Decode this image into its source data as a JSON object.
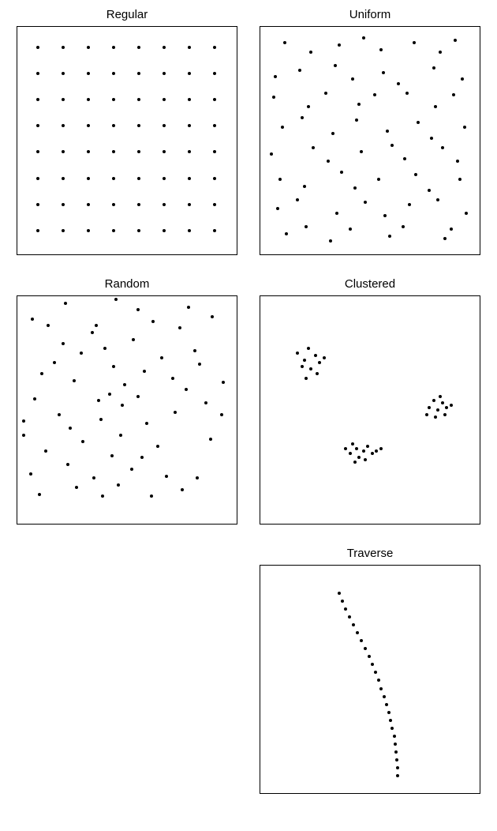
{
  "layout": {
    "rows": 3,
    "cols": 2,
    "panel_box_w": 280,
    "panel_box_h": 290,
    "background_color": "#ffffff",
    "border_color": "#000000",
    "border_width": 1.5,
    "title_fontsize": 15,
    "title_color": "#000000",
    "dot_color": "#000000",
    "dot_radius": 2.0
  },
  "panels": [
    {
      "key": "regular",
      "title": "Regular",
      "type": "scatter",
      "points": [
        [
          0.095,
          0.09
        ],
        [
          0.21,
          0.09
        ],
        [
          0.325,
          0.09
        ],
        [
          0.44,
          0.09
        ],
        [
          0.555,
          0.09
        ],
        [
          0.67,
          0.09
        ],
        [
          0.785,
          0.09
        ],
        [
          0.9,
          0.09
        ],
        [
          0.095,
          0.205
        ],
        [
          0.21,
          0.205
        ],
        [
          0.325,
          0.205
        ],
        [
          0.44,
          0.205
        ],
        [
          0.555,
          0.205
        ],
        [
          0.67,
          0.205
        ],
        [
          0.785,
          0.205
        ],
        [
          0.9,
          0.205
        ],
        [
          0.095,
          0.32
        ],
        [
          0.21,
          0.32
        ],
        [
          0.325,
          0.32
        ],
        [
          0.44,
          0.32
        ],
        [
          0.555,
          0.32
        ],
        [
          0.67,
          0.32
        ],
        [
          0.785,
          0.32
        ],
        [
          0.9,
          0.32
        ],
        [
          0.095,
          0.435
        ],
        [
          0.21,
          0.435
        ],
        [
          0.325,
          0.435
        ],
        [
          0.44,
          0.435
        ],
        [
          0.555,
          0.435
        ],
        [
          0.67,
          0.435
        ],
        [
          0.785,
          0.435
        ],
        [
          0.9,
          0.435
        ],
        [
          0.095,
          0.55
        ],
        [
          0.21,
          0.55
        ],
        [
          0.325,
          0.55
        ],
        [
          0.44,
          0.55
        ],
        [
          0.555,
          0.55
        ],
        [
          0.67,
          0.55
        ],
        [
          0.785,
          0.55
        ],
        [
          0.9,
          0.55
        ],
        [
          0.095,
          0.665
        ],
        [
          0.21,
          0.665
        ],
        [
          0.325,
          0.665
        ],
        [
          0.44,
          0.665
        ],
        [
          0.555,
          0.665
        ],
        [
          0.67,
          0.665
        ],
        [
          0.785,
          0.665
        ],
        [
          0.9,
          0.665
        ],
        [
          0.095,
          0.78
        ],
        [
          0.21,
          0.78
        ],
        [
          0.325,
          0.78
        ],
        [
          0.44,
          0.78
        ],
        [
          0.555,
          0.78
        ],
        [
          0.67,
          0.78
        ],
        [
          0.785,
          0.78
        ],
        [
          0.9,
          0.78
        ],
        [
          0.095,
          0.895
        ],
        [
          0.21,
          0.895
        ],
        [
          0.325,
          0.895
        ],
        [
          0.44,
          0.895
        ],
        [
          0.555,
          0.895
        ],
        [
          0.67,
          0.895
        ],
        [
          0.785,
          0.895
        ],
        [
          0.9,
          0.895
        ]
      ]
    },
    {
      "key": "uniform",
      "title": "Uniform",
      "type": "scatter",
      "points": [
        [
          0.11,
          0.07
        ],
        [
          0.23,
          0.11
        ],
        [
          0.36,
          0.08
        ],
        [
          0.47,
          0.05
        ],
        [
          0.55,
          0.1
        ],
        [
          0.7,
          0.07
        ],
        [
          0.82,
          0.11
        ],
        [
          0.89,
          0.06
        ],
        [
          0.07,
          0.22
        ],
        [
          0.18,
          0.19
        ],
        [
          0.34,
          0.17
        ],
        [
          0.42,
          0.23
        ],
        [
          0.56,
          0.2
        ],
        [
          0.63,
          0.25
        ],
        [
          0.79,
          0.18
        ],
        [
          0.92,
          0.23
        ],
        [
          0.06,
          0.31
        ],
        [
          0.22,
          0.35
        ],
        [
          0.3,
          0.29
        ],
        [
          0.45,
          0.34
        ],
        [
          0.52,
          0.3
        ],
        [
          0.67,
          0.29
        ],
        [
          0.8,
          0.35
        ],
        [
          0.88,
          0.3
        ],
        [
          0.1,
          0.44
        ],
        [
          0.19,
          0.4
        ],
        [
          0.33,
          0.47
        ],
        [
          0.44,
          0.41
        ],
        [
          0.58,
          0.46
        ],
        [
          0.72,
          0.42
        ],
        [
          0.78,
          0.49
        ],
        [
          0.93,
          0.44
        ],
        [
          0.05,
          0.56
        ],
        [
          0.24,
          0.53
        ],
        [
          0.31,
          0.59
        ],
        [
          0.46,
          0.55
        ],
        [
          0.6,
          0.52
        ],
        [
          0.66,
          0.58
        ],
        [
          0.83,
          0.53
        ],
        [
          0.9,
          0.59
        ],
        [
          0.09,
          0.67
        ],
        [
          0.2,
          0.7
        ],
        [
          0.37,
          0.64
        ],
        [
          0.43,
          0.71
        ],
        [
          0.54,
          0.67
        ],
        [
          0.71,
          0.65
        ],
        [
          0.77,
          0.72
        ],
        [
          0.91,
          0.67
        ],
        [
          0.08,
          0.8
        ],
        [
          0.17,
          0.76
        ],
        [
          0.35,
          0.82
        ],
        [
          0.48,
          0.77
        ],
        [
          0.57,
          0.83
        ],
        [
          0.68,
          0.78
        ],
        [
          0.81,
          0.76
        ],
        [
          0.94,
          0.82
        ],
        [
          0.12,
          0.91
        ],
        [
          0.21,
          0.88
        ],
        [
          0.32,
          0.94
        ],
        [
          0.41,
          0.89
        ],
        [
          0.59,
          0.92
        ],
        [
          0.65,
          0.88
        ],
        [
          0.84,
          0.93
        ],
        [
          0.87,
          0.89
        ]
      ]
    },
    {
      "key": "random",
      "title": "Random",
      "type": "scatter",
      "points": [
        [
          0.22,
          0.03
        ],
        [
          0.45,
          0.015
        ],
        [
          0.55,
          0.06
        ],
        [
          0.78,
          0.05
        ],
        [
          0.07,
          0.1
        ],
        [
          0.14,
          0.13
        ],
        [
          0.34,
          0.16
        ],
        [
          0.36,
          0.13
        ],
        [
          0.62,
          0.11
        ],
        [
          0.74,
          0.14
        ],
        [
          0.89,
          0.09
        ],
        [
          0.21,
          0.21
        ],
        [
          0.29,
          0.25
        ],
        [
          0.4,
          0.23
        ],
        [
          0.53,
          0.19
        ],
        [
          0.66,
          0.27
        ],
        [
          0.81,
          0.24
        ],
        [
          0.11,
          0.34
        ],
        [
          0.17,
          0.29
        ],
        [
          0.26,
          0.37
        ],
        [
          0.44,
          0.31
        ],
        [
          0.49,
          0.39
        ],
        [
          0.58,
          0.33
        ],
        [
          0.71,
          0.36
        ],
        [
          0.83,
          0.3
        ],
        [
          0.94,
          0.38
        ],
        [
          0.08,
          0.45
        ],
        [
          0.37,
          0.46
        ],
        [
          0.42,
          0.43
        ],
        [
          0.48,
          0.48
        ],
        [
          0.55,
          0.44
        ],
        [
          0.77,
          0.41
        ],
        [
          0.86,
          0.47
        ],
        [
          0.03,
          0.55
        ],
        [
          0.19,
          0.52
        ],
        [
          0.24,
          0.58
        ],
        [
          0.38,
          0.54
        ],
        [
          0.59,
          0.56
        ],
        [
          0.72,
          0.51
        ],
        [
          0.93,
          0.52
        ],
        [
          0.03,
          0.61
        ],
        [
          0.13,
          0.68
        ],
        [
          0.3,
          0.64
        ],
        [
          0.43,
          0.7
        ],
        [
          0.47,
          0.61
        ],
        [
          0.64,
          0.66
        ],
        [
          0.88,
          0.63
        ],
        [
          0.06,
          0.78
        ],
        [
          0.23,
          0.74
        ],
        [
          0.35,
          0.8
        ],
        [
          0.52,
          0.76
        ],
        [
          0.57,
          0.71
        ],
        [
          0.68,
          0.79
        ],
        [
          0.1,
          0.87
        ],
        [
          0.27,
          0.84
        ],
        [
          0.39,
          0.88
        ],
        [
          0.46,
          0.83
        ],
        [
          0.61,
          0.88
        ],
        [
          0.75,
          0.85
        ],
        [
          0.82,
          0.8
        ]
      ]
    },
    {
      "key": "clustered",
      "title": "Clustered",
      "type": "scatter",
      "points": [
        [
          0.22,
          0.23
        ],
        [
          0.25,
          0.26
        ],
        [
          0.2,
          0.28
        ],
        [
          0.27,
          0.29
        ],
        [
          0.23,
          0.32
        ],
        [
          0.19,
          0.31
        ],
        [
          0.26,
          0.34
        ],
        [
          0.21,
          0.36
        ],
        [
          0.29,
          0.27
        ],
        [
          0.17,
          0.25
        ],
        [
          0.79,
          0.46
        ],
        [
          0.83,
          0.47
        ],
        [
          0.81,
          0.5
        ],
        [
          0.85,
          0.49
        ],
        [
          0.77,
          0.49
        ],
        [
          0.82,
          0.44
        ],
        [
          0.87,
          0.48
        ],
        [
          0.8,
          0.53
        ],
        [
          0.84,
          0.52
        ],
        [
          0.76,
          0.52
        ],
        [
          0.44,
          0.67
        ],
        [
          0.47,
          0.68
        ],
        [
          0.41,
          0.69
        ],
        [
          0.49,
          0.66
        ],
        [
          0.45,
          0.71
        ],
        [
          0.42,
          0.65
        ],
        [
          0.51,
          0.69
        ],
        [
          0.39,
          0.67
        ],
        [
          0.48,
          0.72
        ],
        [
          0.53,
          0.68
        ],
        [
          0.55,
          0.67
        ],
        [
          0.43,
          0.73
        ]
      ]
    },
    {
      "key": "empty",
      "title": "",
      "type": "empty",
      "points": []
    },
    {
      "key": "traverse",
      "title": "Traverse",
      "type": "scatter",
      "points": [
        [
          0.36,
          0.12
        ],
        [
          0.375,
          0.155
        ],
        [
          0.39,
          0.19
        ],
        [
          0.408,
          0.225
        ],
        [
          0.425,
          0.26
        ],
        [
          0.442,
          0.295
        ],
        [
          0.46,
          0.33
        ],
        [
          0.478,
          0.365
        ],
        [
          0.495,
          0.4
        ],
        [
          0.51,
          0.435
        ],
        [
          0.525,
          0.47
        ],
        [
          0.54,
          0.505
        ],
        [
          0.552,
          0.54
        ],
        [
          0.565,
          0.575
        ],
        [
          0.575,
          0.61
        ],
        [
          0.585,
          0.645
        ],
        [
          0.595,
          0.68
        ],
        [
          0.602,
          0.715
        ],
        [
          0.61,
          0.75
        ],
        [
          0.615,
          0.785
        ],
        [
          0.62,
          0.82
        ],
        [
          0.622,
          0.855
        ],
        [
          0.625,
          0.89
        ],
        [
          0.626,
          0.925
        ]
      ]
    }
  ]
}
